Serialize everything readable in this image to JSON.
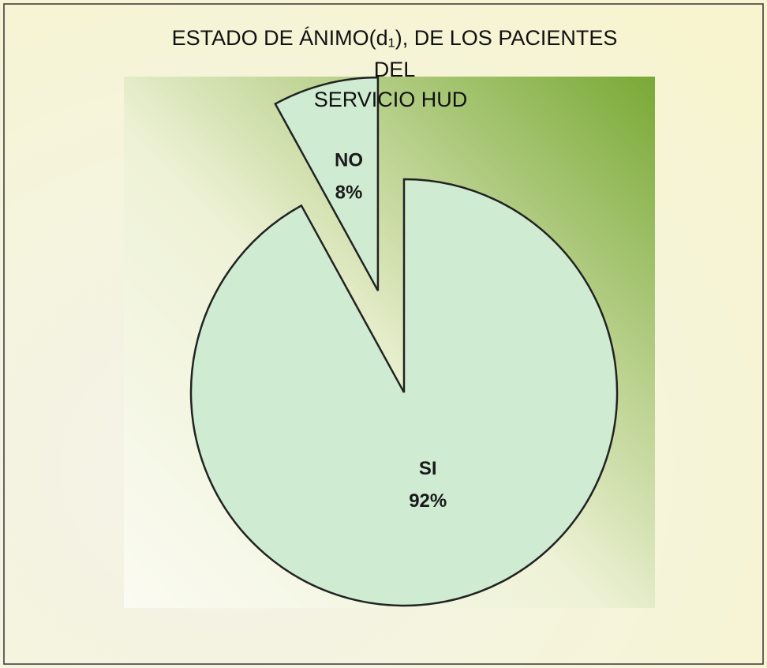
{
  "chart_data": {
    "type": "pie",
    "title": [
      "ESTADO DE ÁNIMO(d₁), DE LOS PACIENTES",
      "DEL",
      "SERVICIO HUD"
    ],
    "categories": [
      "SI",
      "NO"
    ],
    "values": [
      92,
      8
    ],
    "value_labels": [
      "92%",
      "8%"
    ],
    "color": "#cfecd3",
    "explode": [
      false,
      true
    ]
  }
}
